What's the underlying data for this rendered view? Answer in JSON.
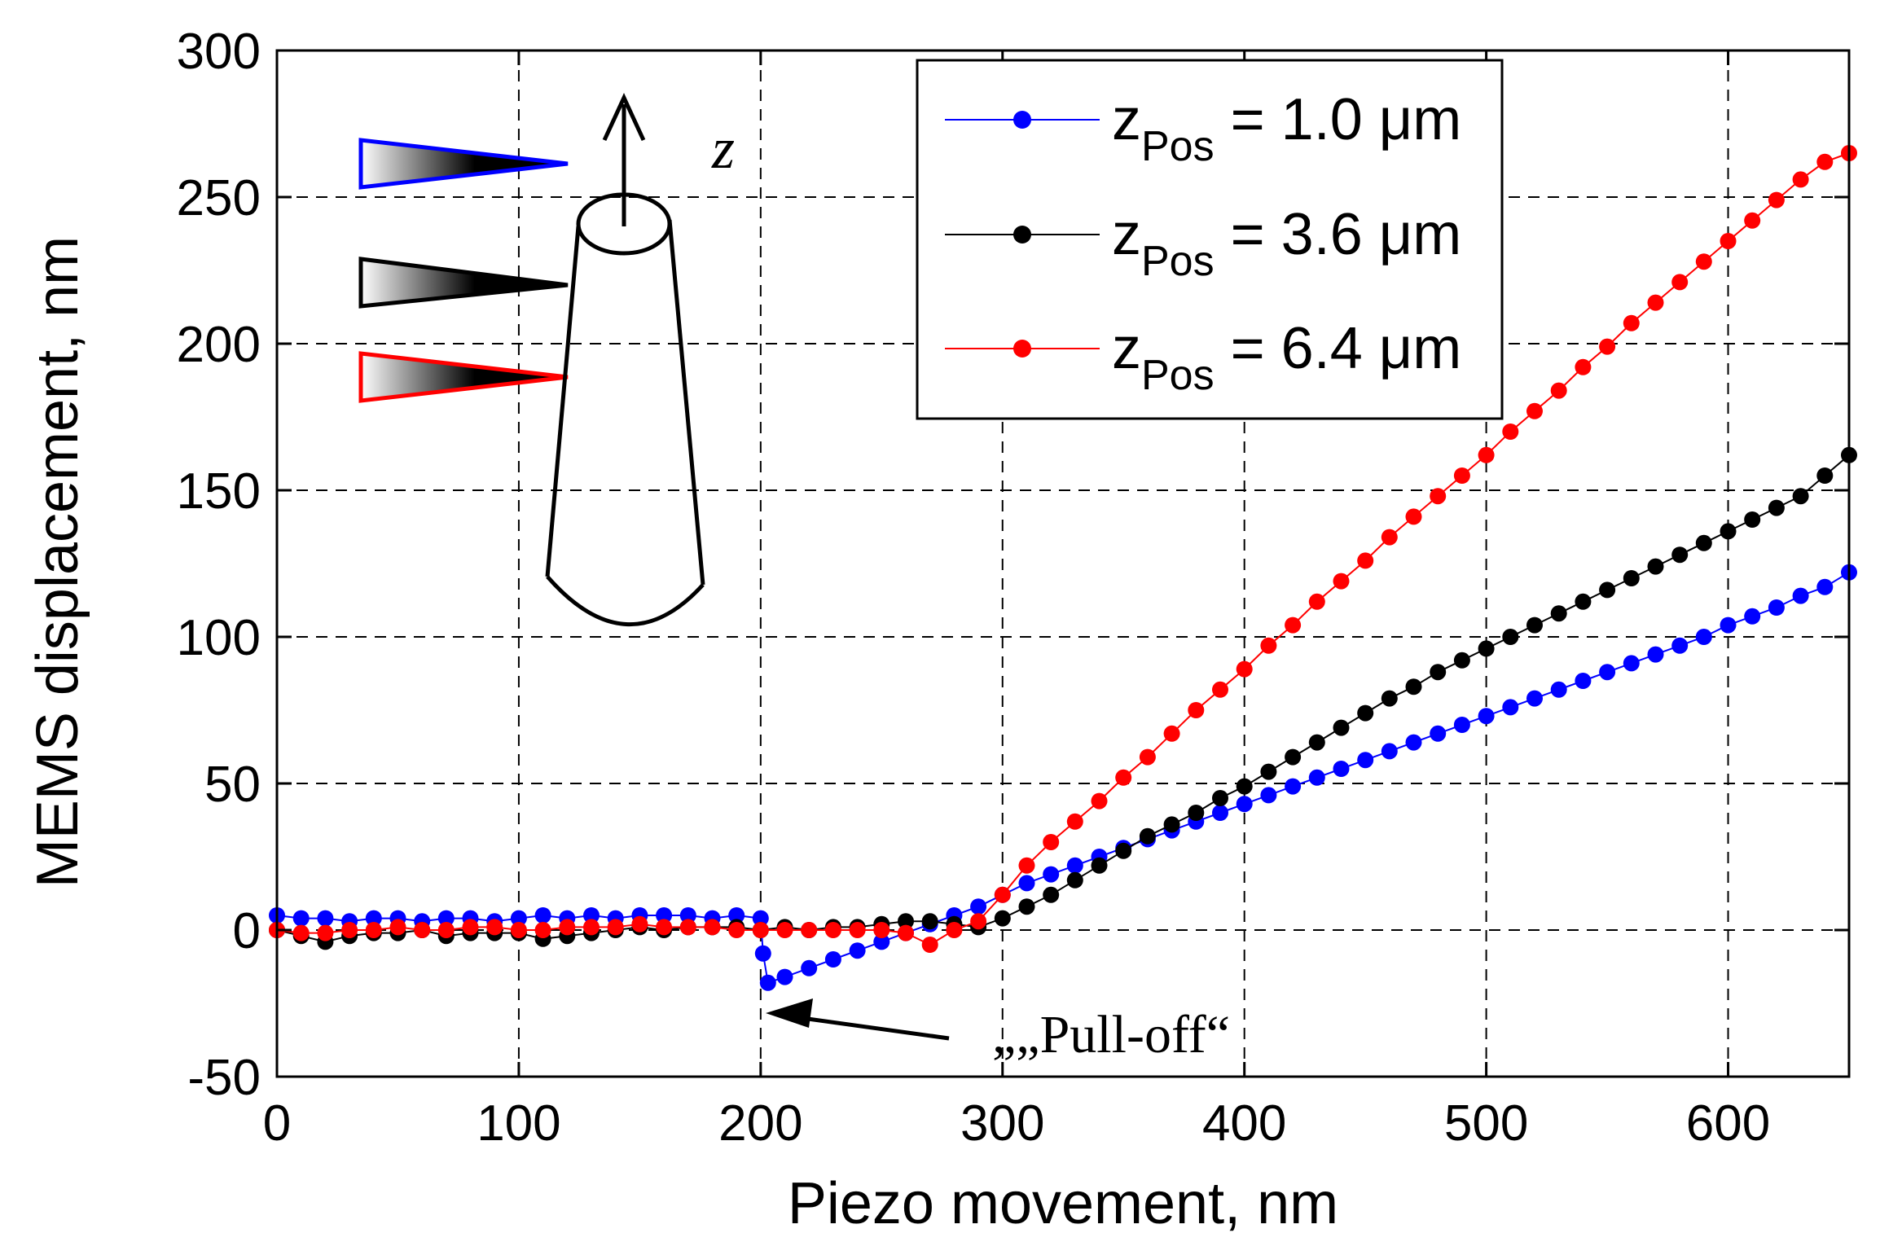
{
  "chart_data": {
    "type": "scatter",
    "title": "",
    "xlabel": "Piezo movement, nm",
    "ylabel": "MEMS displacement, nm",
    "xlim": [
      0,
      650
    ],
    "ylim": [
      -50,
      300
    ],
    "xticks": [
      0,
      100,
      200,
      300,
      400,
      500,
      600
    ],
    "yticks": [
      -50,
      0,
      50,
      100,
      150,
      200,
      250,
      300
    ],
    "grid": true,
    "legend_position": "top-right",
    "series": [
      {
        "name": "z_Pos = 1.0 μm",
        "legend_main": "z",
        "legend_sub": "Pos",
        "legend_value": " = 1.0 μm",
        "color": "#0000ff",
        "points": [
          [
            0,
            5
          ],
          [
            10,
            4
          ],
          [
            20,
            4
          ],
          [
            30,
            3
          ],
          [
            40,
            4
          ],
          [
            50,
            4
          ],
          [
            60,
            3
          ],
          [
            70,
            4
          ],
          [
            80,
            4
          ],
          [
            90,
            3
          ],
          [
            100,
            4
          ],
          [
            110,
            5
          ],
          [
            120,
            4
          ],
          [
            130,
            5
          ],
          [
            140,
            4
          ],
          [
            150,
            5
          ],
          [
            160,
            5
          ],
          [
            170,
            5
          ],
          [
            180,
            4
          ],
          [
            190,
            5
          ],
          [
            200,
            4
          ],
          [
            201,
            -8
          ],
          [
            203,
            -18
          ],
          [
            210,
            -16
          ],
          [
            220,
            -13
          ],
          [
            230,
            -10
          ],
          [
            240,
            -7
          ],
          [
            250,
            -4
          ],
          [
            260,
            -1
          ],
          [
            270,
            2
          ],
          [
            280,
            5
          ],
          [
            290,
            8
          ],
          [
            300,
            12
          ],
          [
            310,
            16
          ],
          [
            320,
            19
          ],
          [
            330,
            22
          ],
          [
            340,
            25
          ],
          [
            350,
            28
          ],
          [
            360,
            31
          ],
          [
            370,
            34
          ],
          [
            380,
            37
          ],
          [
            390,
            40
          ],
          [
            400,
            43
          ],
          [
            410,
            46
          ],
          [
            420,
            49
          ],
          [
            430,
            52
          ],
          [
            440,
            55
          ],
          [
            450,
            58
          ],
          [
            460,
            61
          ],
          [
            470,
            64
          ],
          [
            480,
            67
          ],
          [
            490,
            70
          ],
          [
            500,
            73
          ],
          [
            510,
            76
          ],
          [
            520,
            79
          ],
          [
            530,
            82
          ],
          [
            540,
            85
          ],
          [
            550,
            88
          ],
          [
            560,
            91
          ],
          [
            570,
            94
          ],
          [
            580,
            97
          ],
          [
            590,
            100
          ],
          [
            600,
            104
          ],
          [
            610,
            107
          ],
          [
            620,
            110
          ],
          [
            630,
            114
          ],
          [
            640,
            117
          ],
          [
            650,
            122
          ]
        ]
      },
      {
        "name": "z_Pos = 3.6 μm",
        "legend_main": "z",
        "legend_sub": "Pos",
        "legend_value": " = 3.6 μm",
        "color": "#000000",
        "points": [
          [
            0,
            0
          ],
          [
            10,
            -2
          ],
          [
            20,
            -4
          ],
          [
            30,
            -2
          ],
          [
            40,
            -1
          ],
          [
            50,
            -1
          ],
          [
            60,
            0
          ],
          [
            70,
            -2
          ],
          [
            80,
            -1
          ],
          [
            90,
            -1
          ],
          [
            100,
            -1
          ],
          [
            110,
            -3
          ],
          [
            120,
            -2
          ],
          [
            130,
            -1
          ],
          [
            140,
            0
          ],
          [
            150,
            1
          ],
          [
            160,
            0
          ],
          [
            170,
            1
          ],
          [
            180,
            1
          ],
          [
            190,
            1
          ],
          [
            200,
            0
          ],
          [
            210,
            1
          ],
          [
            220,
            0
          ],
          [
            230,
            1
          ],
          [
            240,
            1
          ],
          [
            250,
            2
          ],
          [
            260,
            3
          ],
          [
            270,
            3
          ],
          [
            280,
            2
          ],
          [
            290,
            1
          ],
          [
            300,
            4
          ],
          [
            310,
            8
          ],
          [
            320,
            12
          ],
          [
            330,
            17
          ],
          [
            340,
            22
          ],
          [
            350,
            27
          ],
          [
            360,
            32
          ],
          [
            370,
            36
          ],
          [
            380,
            40
          ],
          [
            390,
            45
          ],
          [
            400,
            49
          ],
          [
            410,
            54
          ],
          [
            420,
            59
          ],
          [
            430,
            64
          ],
          [
            440,
            69
          ],
          [
            450,
            74
          ],
          [
            460,
            79
          ],
          [
            470,
            83
          ],
          [
            480,
            88
          ],
          [
            490,
            92
          ],
          [
            500,
            96
          ],
          [
            510,
            100
          ],
          [
            520,
            104
          ],
          [
            530,
            108
          ],
          [
            540,
            112
          ],
          [
            550,
            116
          ],
          [
            560,
            120
          ],
          [
            570,
            124
          ],
          [
            580,
            128
          ],
          [
            590,
            132
          ],
          [
            600,
            136
          ],
          [
            610,
            140
          ],
          [
            620,
            144
          ],
          [
            630,
            148
          ],
          [
            640,
            155
          ],
          [
            650,
            162
          ]
        ]
      },
      {
        "name": "z_Pos = 6.4 μm",
        "legend_main": "z",
        "legend_sub": "Pos",
        "legend_value": " = 6.4 μm",
        "color": "#ff0000",
        "points": [
          [
            0,
            0
          ],
          [
            10,
            -1
          ],
          [
            20,
            -1
          ],
          [
            30,
            0
          ],
          [
            40,
            0
          ],
          [
            50,
            1
          ],
          [
            60,
            0
          ],
          [
            70,
            0
          ],
          [
            80,
            1
          ],
          [
            90,
            1
          ],
          [
            100,
            0
          ],
          [
            110,
            0
          ],
          [
            120,
            1
          ],
          [
            130,
            1
          ],
          [
            140,
            1
          ],
          [
            150,
            2
          ],
          [
            160,
            1
          ],
          [
            170,
            1
          ],
          [
            180,
            1
          ],
          [
            190,
            0
          ],
          [
            200,
            0
          ],
          [
            210,
            0
          ],
          [
            220,
            0
          ],
          [
            230,
            0
          ],
          [
            240,
            0
          ],
          [
            250,
            0
          ],
          [
            260,
            -1
          ],
          [
            270,
            -5
          ],
          [
            280,
            0
          ],
          [
            290,
            3
          ],
          [
            300,
            12
          ],
          [
            310,
            22
          ],
          [
            320,
            30
          ],
          [
            330,
            37
          ],
          [
            340,
            44
          ],
          [
            350,
            52
          ],
          [
            360,
            59
          ],
          [
            370,
            67
          ],
          [
            380,
            75
          ],
          [
            390,
            82
          ],
          [
            400,
            89
          ],
          [
            410,
            97
          ],
          [
            420,
            104
          ],
          [
            430,
            112
          ],
          [
            440,
            119
          ],
          [
            450,
            126
          ],
          [
            460,
            134
          ],
          [
            470,
            141
          ],
          [
            480,
            148
          ],
          [
            490,
            155
          ],
          [
            500,
            162
          ],
          [
            510,
            170
          ],
          [
            520,
            177
          ],
          [
            530,
            184
          ],
          [
            540,
            192
          ],
          [
            550,
            199
          ],
          [
            560,
            207
          ],
          [
            570,
            214
          ],
          [
            580,
            221
          ],
          [
            590,
            228
          ],
          [
            600,
            235
          ],
          [
            610,
            242
          ],
          [
            620,
            249
          ],
          [
            630,
            256
          ],
          [
            640,
            262
          ],
          [
            650,
            265
          ]
        ]
      }
    ],
    "annotations": [
      {
        "text": "„„Pull-off“",
        "target": [
          203,
          -18
        ]
      },
      {
        "text": "z"
      }
    ]
  }
}
